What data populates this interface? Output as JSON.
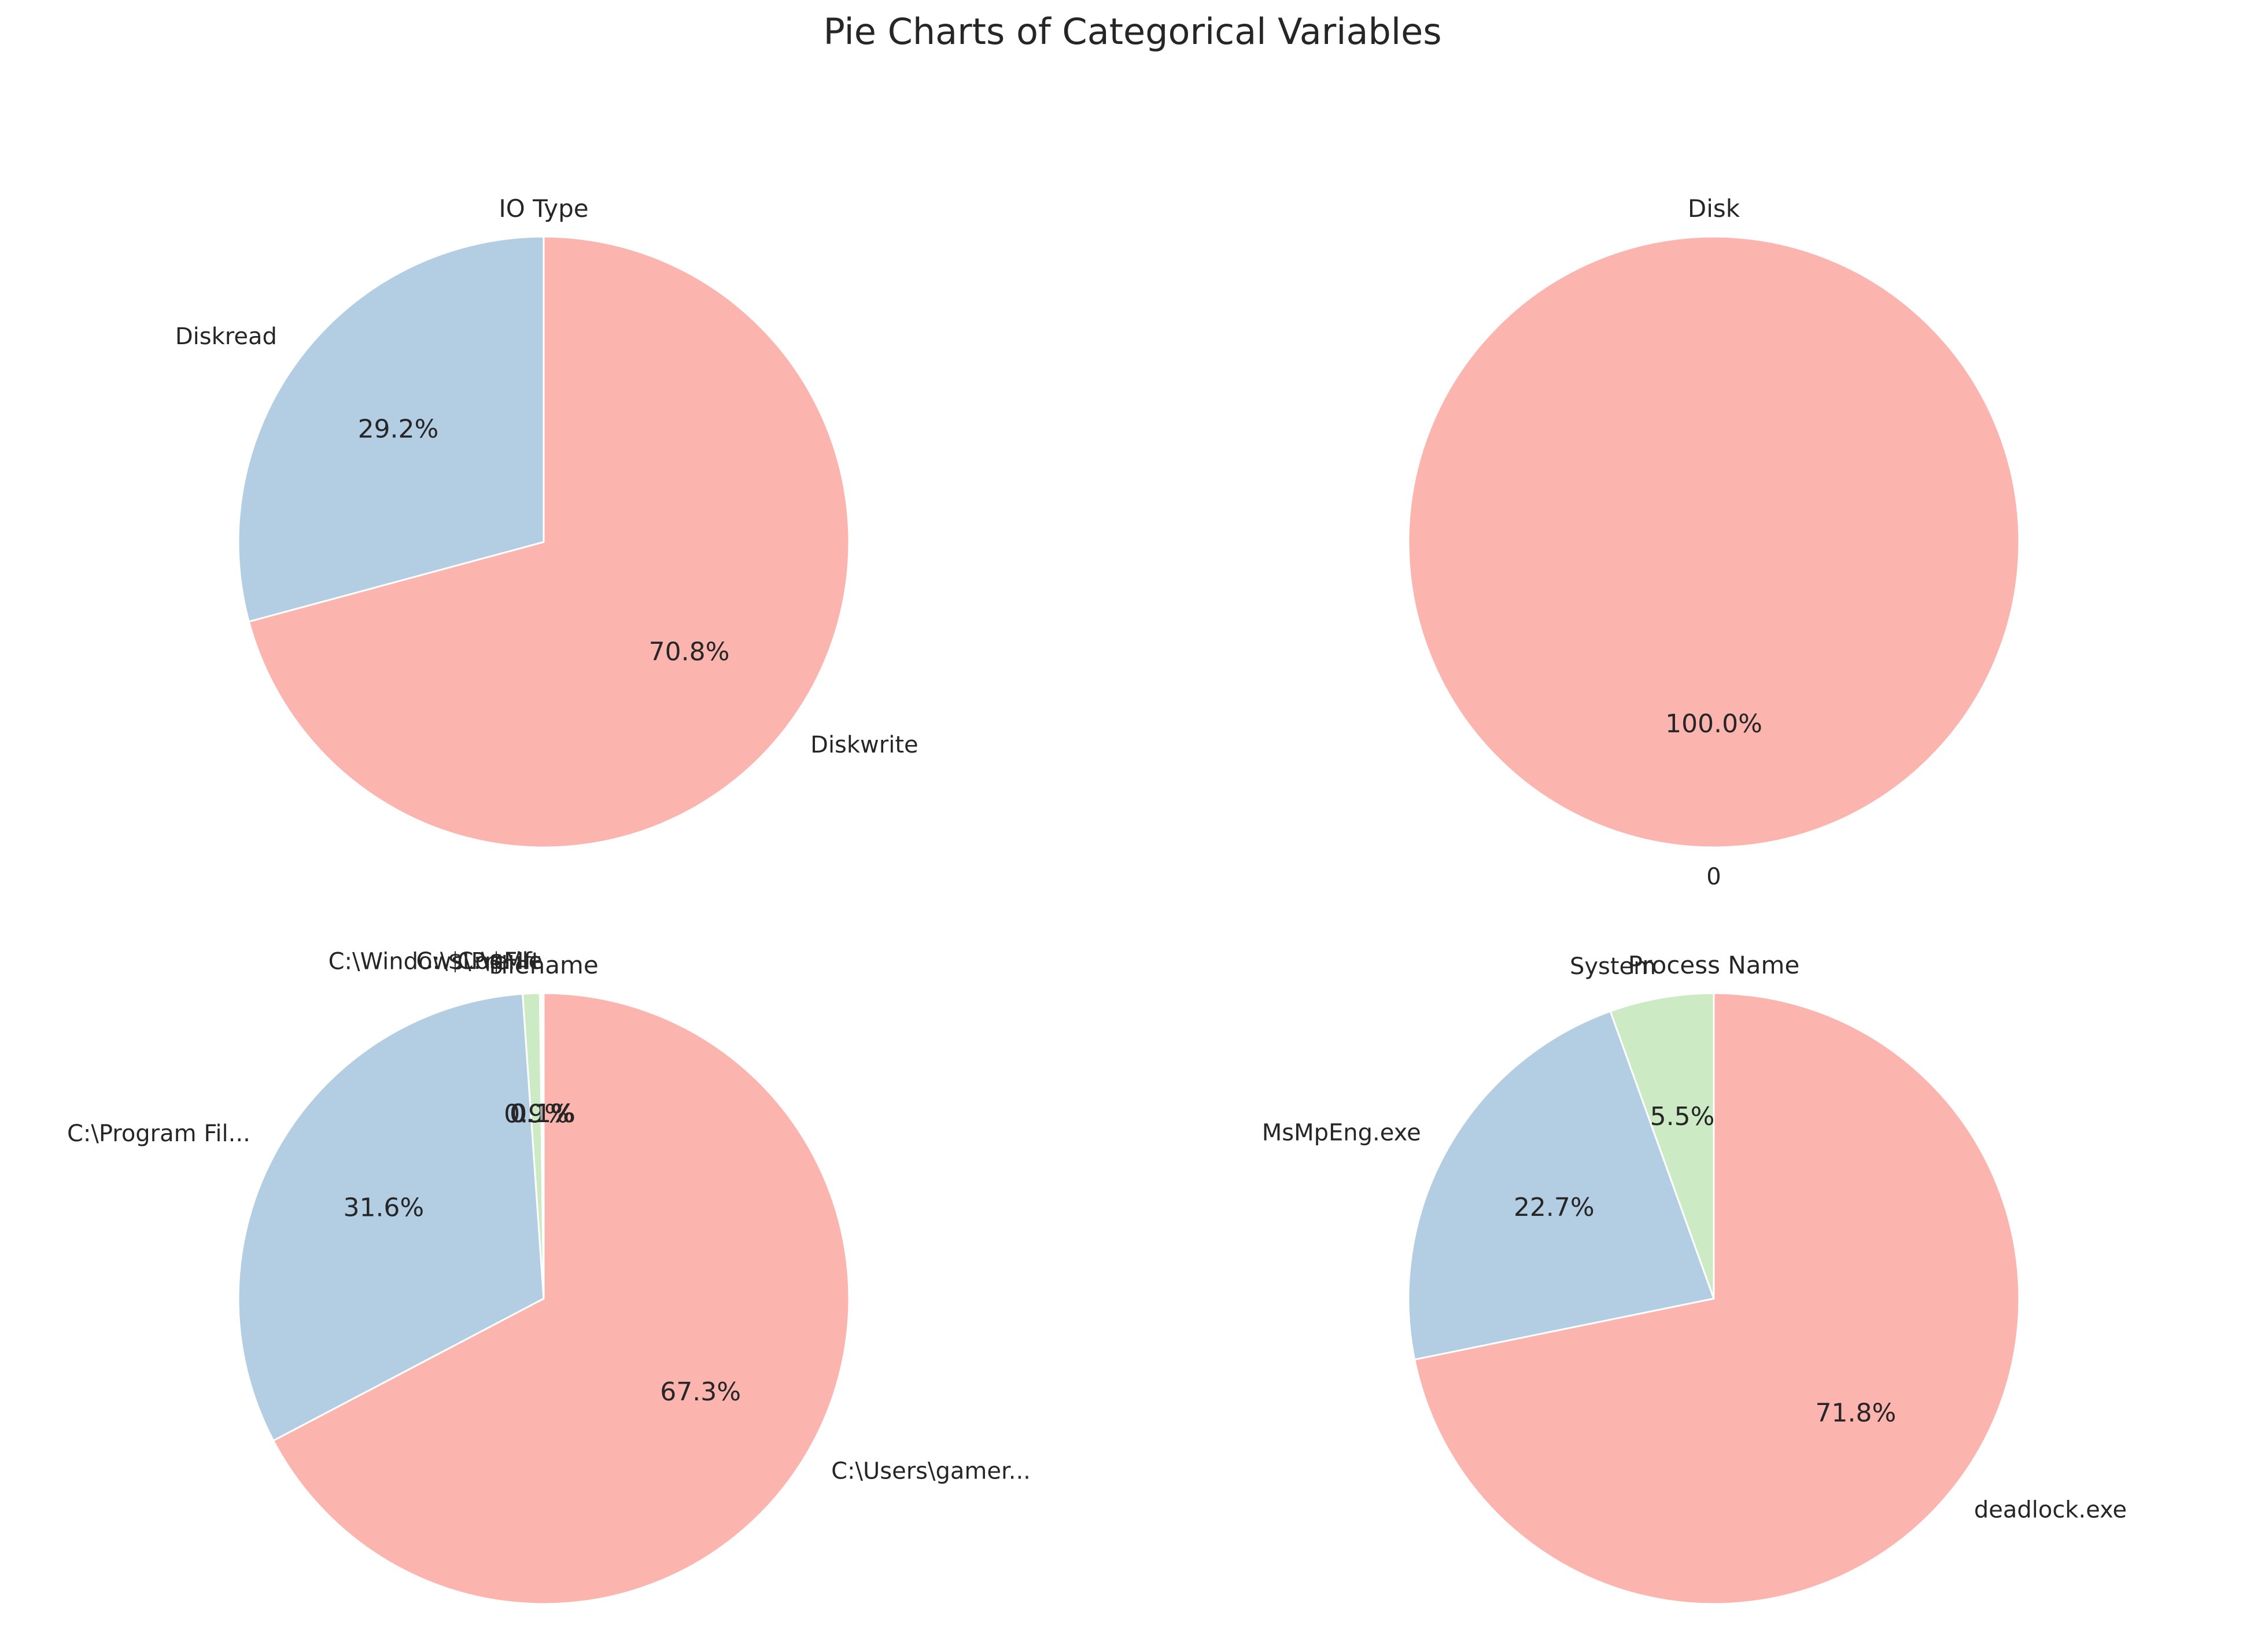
{
  "figure_title": "Pie Charts of Categorical Variables",
  "chart_data": [
    {
      "type": "pie",
      "title": "IO Type",
      "start_angle_deg": 90,
      "direction": "clockwise",
      "slices": [
        {
          "label": "Diskwrite",
          "value": 70.8,
          "pct_label": "70.8%",
          "color": "#fbb4ae"
        },
        {
          "label": "Diskread",
          "value": 29.2,
          "pct_label": "29.2%",
          "color": "#b3cde3"
        }
      ]
    },
    {
      "type": "pie",
      "title": "Disk",
      "start_angle_deg": 90,
      "direction": "clockwise",
      "slices": [
        {
          "label": "0",
          "value": 100.0,
          "pct_label": "100.0%",
          "color": "#fbb4ae"
        }
      ]
    },
    {
      "type": "pie",
      "title": "Filename",
      "start_angle_deg": 90,
      "direction": "clockwise",
      "slices": [
        {
          "label": "C:\\Users\\gamer...",
          "value": 67.3,
          "pct_label": "67.3%",
          "color": "#fbb4ae"
        },
        {
          "label": "C:\\Program Fil...",
          "value": 31.6,
          "pct_label": "31.6%",
          "color": "#b3cde3"
        },
        {
          "label": "C:\\Windows\\Pre...",
          "value": 0.9,
          "pct_label": "0.9%",
          "color": "#ccebc5"
        },
        {
          "label": "C:\\$Mft",
          "value": 0.1,
          "pct_label": "0.1%",
          "color": "#decbe4"
        },
        {
          "label": "C:\\$LogFile",
          "value": 0.1,
          "pct_label": "0.1%",
          "color": "#fed9a6"
        }
      ]
    },
    {
      "type": "pie",
      "title": "Process Name",
      "start_angle_deg": 90,
      "direction": "clockwise",
      "slices": [
        {
          "label": "deadlock.exe",
          "value": 71.8,
          "pct_label": "71.8%",
          "color": "#fbb4ae"
        },
        {
          "label": "MsMpEng.exe",
          "value": 22.7,
          "pct_label": "22.7%",
          "color": "#b3cde3"
        },
        {
          "label": "System",
          "value": 5.5,
          "pct_label": "5.5%",
          "color": "#ccebc5"
        }
      ]
    }
  ]
}
